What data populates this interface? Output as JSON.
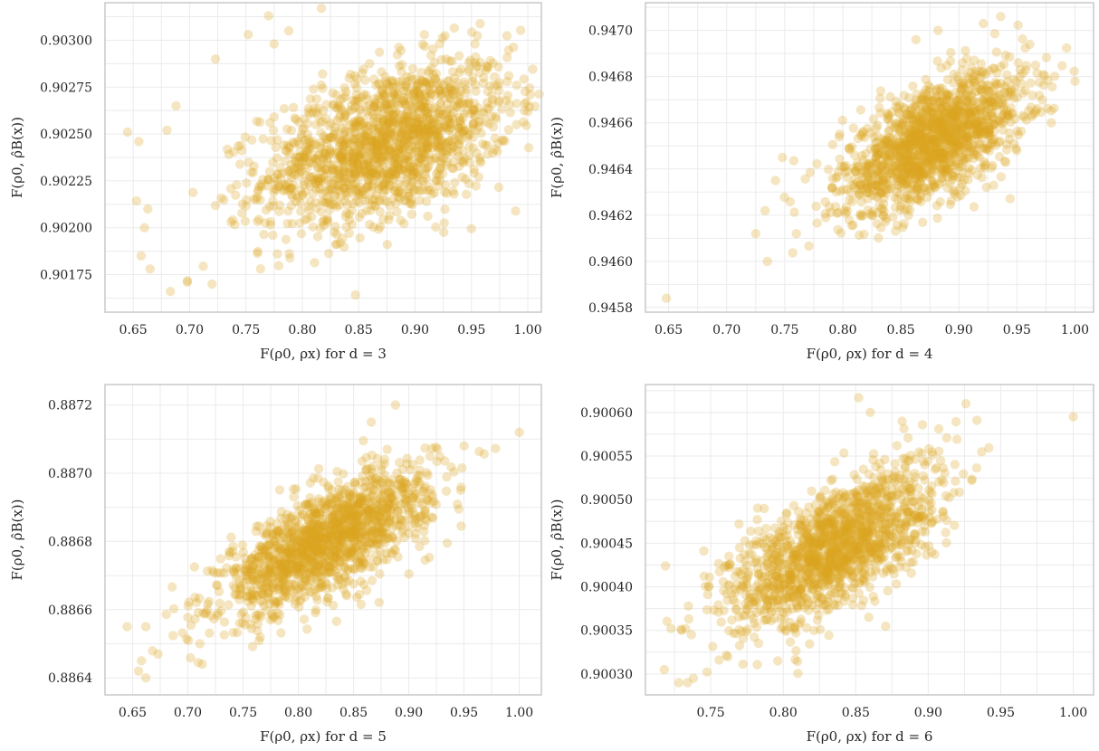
{
  "point_color": "#daa520",
  "chart_data": [
    {
      "type": "scatter",
      "xlabel": "F(ρ0, ρx) for d = 3",
      "ylabel": "F(ρ0, ρ̂B(x))",
      "xlim": [
        0.625,
        1.012
      ],
      "ylim": [
        0.90155,
        0.9032
      ],
      "xticks": [
        0.65,
        0.7,
        0.75,
        0.8,
        0.85,
        0.9,
        0.95,
        1.0
      ],
      "xtick_labels": [
        "0.65",
        "0.70",
        "0.75",
        "0.80",
        "0.85",
        "0.90",
        "0.95",
        "1.00"
      ],
      "yticks": [
        0.90175,
        0.902,
        0.90225,
        0.9025,
        0.90275,
        0.903
      ],
      "ytick_labels": [
        "0.90175",
        "0.90200",
        "0.90225",
        "0.90250",
        "0.90275",
        "0.90300"
      ],
      "grid": true,
      "cloud": {
        "center": [
          0.875,
          0.90245
        ],
        "sd": [
          0.055,
          0.00022
        ],
        "corr": 0.45,
        "n": 1600
      },
      "outliers": [
        [
          0.645,
          0.90251
        ],
        [
          0.655,
          0.90246
        ],
        [
          0.663,
          0.9021
        ],
        [
          0.66,
          0.902
        ],
        [
          0.657,
          0.90185
        ],
        [
          0.665,
          0.90178
        ],
        [
          0.683,
          0.90166
        ],
        [
          0.68,
          0.90252
        ],
        [
          0.688,
          0.90265
        ],
        [
          0.698,
          0.90171
        ],
        [
          0.723,
          0.9029
        ],
        [
          0.752,
          0.90303
        ],
        [
          0.77,
          0.90313
        ],
        [
          0.817,
          0.90317
        ],
        [
          0.788,
          0.90305
        ],
        [
          0.775,
          0.90298
        ],
        [
          1.0,
          0.90262
        ],
        [
          0.99,
          0.90255
        ],
        [
          0.72,
          0.9017
        ]
      ]
    },
    {
      "type": "scatter",
      "xlabel": "F(ρ0, ρx) for d = 4",
      "ylabel": "F(ρ0, ρ̂B(x))",
      "xlim": [
        0.63,
        1.016
      ],
      "ylim": [
        0.94578,
        0.94712
      ],
      "xticks": [
        0.65,
        0.7,
        0.75,
        0.8,
        0.85,
        0.9,
        0.95,
        1.0
      ],
      "xtick_labels": [
        "0.65",
        "0.70",
        "0.75",
        "0.80",
        "0.85",
        "0.90",
        "0.95",
        "1.00"
      ],
      "yticks": [
        0.9458,
        0.946,
        0.9462,
        0.9464,
        0.9466,
        0.9468,
        0.947
      ],
      "ytick_labels": [
        "0.9458",
        "0.9460",
        "0.9462",
        "0.9464",
        "0.9466",
        "0.9468",
        "0.9470"
      ],
      "grid": true,
      "cloud": {
        "center": [
          0.878,
          0.94652
        ],
        "sd": [
          0.04,
          0.00015
        ],
        "corr": 0.62,
        "n": 1500
      },
      "outliers": [
        [
          0.648,
          0.94584
        ],
        [
          0.735,
          0.946
        ],
        [
          0.725,
          0.94612
        ],
        [
          0.733,
          0.94622
        ],
        [
          0.742,
          0.94635
        ],
        [
          1.0,
          0.94678
        ],
        [
          0.936,
          0.94706
        ],
        [
          0.921,
          0.94703
        ],
        [
          0.863,
          0.94696
        ],
        [
          0.882,
          0.947
        ],
        [
          0.76,
          0.94612
        ],
        [
          0.748,
          0.94645
        ]
      ]
    },
    {
      "type": "scatter",
      "xlabel": "F(ρ0, ρx) for d = 5",
      "ylabel": "F(ρ0, ρ̂B(x))",
      "xlim": [
        0.625,
        1.02
      ],
      "ylim": [
        0.88635,
        0.88726
      ],
      "xticks": [
        0.65,
        0.7,
        0.75,
        0.8,
        0.85,
        0.9,
        0.95,
        1.0
      ],
      "xtick_labels": [
        "0.65",
        "0.70",
        "0.75",
        "0.80",
        "0.85",
        "0.90",
        "0.95",
        "1.00"
      ],
      "yticks": [
        0.8864,
        0.8866,
        0.8868,
        0.887,
        0.8872
      ],
      "ytick_labels": [
        "0.8864",
        "0.8866",
        "0.8868",
        "0.8870",
        "0.8872"
      ],
      "grid": true,
      "cloud": {
        "center": [
          0.825,
          0.8868
        ],
        "sd": [
          0.047,
          0.000105
        ],
        "corr": 0.72,
        "n": 1500
      },
      "outliers": [
        [
          0.645,
          0.88655
        ],
        [
          0.662,
          0.88655
        ],
        [
          0.658,
          0.88645
        ],
        [
          0.662,
          0.8864
        ],
        [
          0.673,
          0.88647
        ],
        [
          1.0,
          0.88712
        ],
        [
          0.888,
          0.8872
        ],
        [
          0.866,
          0.88715
        ],
        [
          0.947,
          0.88695
        ],
        [
          0.95,
          0.88708
        ]
      ]
    },
    {
      "type": "scatter",
      "xlabel": "F(ρ0, ρx) for d = 6",
      "ylabel": "F(ρ0, ρ̂B(x))",
      "xlim": [
        0.705,
        1.014
      ],
      "ylim": [
        0.900276,
        0.900632
      ],
      "xticks": [
        0.75,
        0.8,
        0.85,
        0.9,
        0.95,
        1.0
      ],
      "xtick_labels": [
        "0.75",
        "0.80",
        "0.85",
        "0.90",
        "0.95",
        "1.00"
      ],
      "yticks": [
        0.9003,
        0.90035,
        0.9004,
        0.90045,
        0.9005,
        0.90055,
        0.9006
      ],
      "ytick_labels": [
        "0.90030",
        "0.90035",
        "0.90040",
        "0.90045",
        "0.90050",
        "0.90055",
        "0.90060"
      ],
      "grid": true,
      "cloud": {
        "center": [
          0.835,
          0.900445
        ],
        "sd": [
          0.036,
          4.6e-05
        ],
        "corr": 0.65,
        "n": 1500
      },
      "outliers": [
        [
          0.718,
          0.900305
        ],
        [
          0.728,
          0.90029
        ],
        [
          0.734,
          0.90029
        ],
        [
          0.738,
          0.900295
        ],
        [
          1.0,
          0.900595
        ],
        [
          0.926,
          0.90061
        ],
        [
          0.852,
          0.900617
        ],
        [
          0.86,
          0.9006
        ],
        [
          0.882,
          0.90059
        ],
        [
          0.93,
          0.900522
        ]
      ]
    }
  ]
}
